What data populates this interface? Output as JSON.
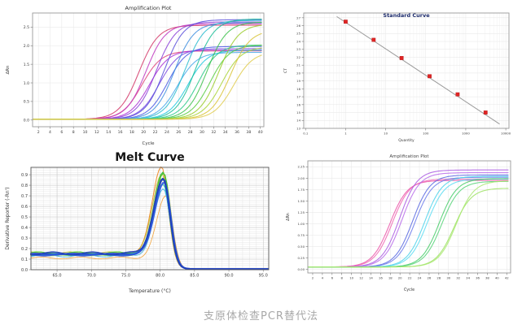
{
  "caption": "支原体检查PCR替代法",
  "chart_data": [
    {
      "id": "amp-main",
      "type": "amplification",
      "title": "Amplification Plot",
      "xlabel": "Cycle",
      "ylabel": "ΔRn",
      "xlim": [
        1,
        40.6
      ],
      "ylim": [
        -0.18,
        2.88
      ],
      "xticks": [
        2,
        4,
        6,
        8,
        10,
        12,
        14,
        16,
        18,
        20,
        22,
        24,
        26,
        28,
        30,
        32,
        34,
        36,
        38,
        40
      ],
      "xtick_labels": [
        "2",
        "4",
        "6",
        "8",
        "10",
        "12",
        "14",
        "16",
        "18",
        "20",
        "22",
        "24",
        "26",
        "28",
        "30",
        "32",
        "34",
        "36",
        "38",
        "40"
      ],
      "yticks": [
        0.0,
        0.5,
        1.0,
        1.5,
        2.0,
        2.5
      ],
      "ytick_labels": [
        "0.0",
        "0.5",
        "1.0",
        "1.5",
        "2.0",
        "2.5"
      ],
      "grid_on": true,
      "legend": "none",
      "sigmoid_k": 0.6,
      "baseline": 0.02,
      "series": [
        {
          "name": "red-hi",
          "color": "#d33a6a",
          "midpoint": 19.2,
          "plateau": 2.53
        },
        {
          "name": "red-lo",
          "color": "#e0447e",
          "midpoint": 19.7,
          "plateau": 1.84
        },
        {
          "name": "magenta-hi",
          "color": "#c038c0",
          "midpoint": 20.4,
          "plateau": 2.57
        },
        {
          "name": "magenta-lo",
          "color": "#ad35d6",
          "midpoint": 21.0,
          "plateau": 1.86
        },
        {
          "name": "purple-hi",
          "color": "#8a40d8",
          "midpoint": 22.2,
          "plateau": 2.62
        },
        {
          "name": "purple-lo",
          "color": "#7a4ae2",
          "midpoint": 22.7,
          "plateau": 1.9
        },
        {
          "name": "blueviolet-hi",
          "color": "#5a50da",
          "midpoint": 23.6,
          "plateau": 2.68
        },
        {
          "name": "blueviolet-lo",
          "color": "#4a5ae4",
          "midpoint": 24.1,
          "plateau": 1.96
        },
        {
          "name": "sky-hi",
          "color": "#3f8fdf",
          "midpoint": 25.3,
          "plateau": 2.6
        },
        {
          "name": "sky-lo",
          "color": "#49a9ea",
          "midpoint": 25.8,
          "plateau": 1.8
        },
        {
          "name": "cyan-hi",
          "color": "#2abccf",
          "midpoint": 27.1,
          "plateau": 2.66
        },
        {
          "name": "cyan-lo",
          "color": "#22c9df",
          "midpoint": 27.6,
          "plateau": 1.86
        },
        {
          "name": "teal-hi",
          "color": "#17bd97",
          "midpoint": 28.9,
          "plateau": 2.7
        },
        {
          "name": "teal-lo",
          "color": "#2cc989",
          "midpoint": 29.4,
          "plateau": 2.0
        },
        {
          "name": "green-hi",
          "color": "#3dc24c",
          "midpoint": 30.9,
          "plateau": 2.62
        },
        {
          "name": "green-lo",
          "color": "#57cc40",
          "midpoint": 31.4,
          "plateau": 2.0
        },
        {
          "name": "yellowgreen-hi",
          "color": "#9bcc2d",
          "midpoint": 32.9,
          "plateau": 2.56
        },
        {
          "name": "yellowgreen-lo",
          "color": "#aad437",
          "midpoint": 33.4,
          "plateau": 1.95
        },
        {
          "name": "gold-hi",
          "color": "#d9c438",
          "midpoint": 34.9,
          "plateau": 2.4
        },
        {
          "name": "gold-lo",
          "color": "#e0cc50",
          "midpoint": 35.4,
          "plateau": 1.82
        }
      ]
    },
    {
      "id": "std-curve",
      "type": "scatter",
      "title": "Standard Curve",
      "xlabel": "Quantity",
      "ylabel": "CT",
      "xlog": true,
      "xlim": [
        0.09,
        12000
      ],
      "ylim": [
        13,
        27.6
      ],
      "xticks": [
        0.1,
        1,
        10,
        100,
        1000,
        10000
      ],
      "xtick_labels": [
        "0.1",
        "1",
        "10",
        "100",
        "1000",
        "10000"
      ],
      "yticks": [
        13,
        14,
        15,
        16,
        17,
        18,
        19,
        20,
        21,
        22,
        23,
        24,
        25,
        26,
        27
      ],
      "ytick_labels": [
        "13",
        "14",
        "15",
        "16",
        "17",
        "18",
        "19",
        "20",
        "21",
        "22",
        "23",
        "24",
        "25",
        "26",
        "27"
      ],
      "grid_on": true,
      "point_color": "#e02424",
      "points": {
        "x": [
          1,
          5,
          25,
          125,
          625,
          3125
        ],
        "y": [
          26.5,
          24.2,
          21.9,
          19.6,
          17.3,
          15.0
        ]
      },
      "trendline": {
        "x1": 0.6,
        "y1": 27.15,
        "x2": 7000,
        "y2": 13.55,
        "color": "#9a9a9a"
      }
    },
    {
      "id": "melt-curve",
      "type": "melt",
      "title": "Melt Curve",
      "xlabel": "Temperature (°C)",
      "ylabel": "Derivative Reporter (-Rn')",
      "xlim": [
        61.2,
        95.8
      ],
      "ylim": [
        0,
        0.97
      ],
      "xticks": [
        65,
        70,
        75,
        80,
        85,
        90,
        95
      ],
      "xtick_labels": [
        "65.0",
        "70.0",
        "75.0",
        "80.0",
        "85.0",
        "90.0",
        "95.0"
      ],
      "yticks": [
        0.0,
        0.1,
        0.2,
        0.3,
        0.4,
        0.5,
        0.6,
        0.7,
        0.8,
        0.9
      ],
      "ytick_labels": [
        "0.0",
        "0.1",
        "0.2",
        "0.3",
        "0.4",
        "0.5",
        "0.6",
        "0.7",
        "0.8",
        "0.9"
      ],
      "grid_on": true,
      "minor_grid": {
        "x_step": 1,
        "y_step": 0.02
      },
      "series": [
        {
          "name": "orange",
          "color": "#ef8318",
          "tm": 80.2,
          "peak": 0.95,
          "baseline": 0.145,
          "lw": 1.0
        },
        {
          "name": "orange-thin",
          "color": "#f09a28",
          "tm": 80.9,
          "peak": 0.72,
          "baseline": 0.105,
          "lw": 0.8
        },
        {
          "name": "olive",
          "color": "#b8b82a",
          "tm": 80.3,
          "peak": 0.885,
          "baseline": 0.15,
          "lw": 0.9
        },
        {
          "name": "yellow",
          "color": "#d6ca32",
          "tm": 80.65,
          "peak": 0.87,
          "baseline": 0.135,
          "lw": 1.0
        },
        {
          "name": "green",
          "color": "#2eb93a",
          "tm": 80.45,
          "peak": 0.9,
          "baseline": 0.14,
          "lw": 1.3
        },
        {
          "name": "green-2",
          "color": "#4cc42e",
          "tm": 80.55,
          "peak": 0.885,
          "baseline": 0.15,
          "lw": 1.3
        },
        {
          "name": "lime",
          "color": "#8ed034",
          "tm": 80.35,
          "peak": 0.862,
          "baseline": 0.13,
          "lw": 1.1
        },
        {
          "name": "teal",
          "color": "#25c8b2",
          "tm": 80.42,
          "peak": 0.8,
          "baseline": 0.138,
          "lw": 1.2
        },
        {
          "name": "sky-blue",
          "color": "#3fb0da",
          "tm": 80.5,
          "peak": 0.75,
          "baseline": 0.128,
          "lw": 1.0
        },
        {
          "name": "blue-thick",
          "color": "#2546cc",
          "tm": 80.5,
          "peak": 0.845,
          "baseline": 0.142,
          "lw": 2.2
        },
        {
          "name": "blue-2",
          "color": "#2c55e2",
          "tm": 80.6,
          "peak": 0.825,
          "baseline": 0.136,
          "lw": 2.0
        },
        {
          "name": "navy",
          "color": "#1f3fb8",
          "tm": 80.42,
          "peak": 0.835,
          "baseline": 0.148,
          "lw": 1.8
        }
      ]
    },
    {
      "id": "amp-small",
      "type": "amplification",
      "title": "Amplification Plot",
      "xlabel": "Cycle",
      "ylabel": "ΔRn",
      "xlim": [
        1,
        42.8
      ],
      "ylim": [
        -0.08,
        2.38
      ],
      "xticks": [
        2,
        4,
        6,
        8,
        10,
        12,
        14,
        16,
        18,
        20,
        22,
        24,
        26,
        28,
        30,
        32,
        34,
        36,
        38,
        40,
        42
      ],
      "xtick_labels": [
        "2",
        "4",
        "6",
        "8",
        "10",
        "12",
        "14",
        "16",
        "18",
        "20",
        "22",
        "24",
        "26",
        "28",
        "30",
        "32",
        "34",
        "36",
        "38",
        "40",
        "42"
      ],
      "yticks": [
        0.0,
        0.25,
        0.5,
        0.75,
        1.0,
        1.25,
        1.5,
        1.75,
        2.0,
        2.25
      ],
      "ytick_labels": [
        "0.00",
        "0.25",
        "0.50",
        "0.75",
        "1.00",
        "1.25",
        "1.50",
        "1.75",
        "2.00",
        "2.25"
      ],
      "grid_on": true,
      "sigmoid_k": 0.55,
      "baseline": 0.05,
      "series": [
        {
          "name": "pink-1",
          "color": "#ea55a8",
          "midpoint": 17.9,
          "plateau": 1.9
        },
        {
          "name": "pink-2",
          "color": "#f065b2",
          "midpoint": 18.4,
          "plateau": 1.93
        },
        {
          "name": "violet-1",
          "color": "#aa5ce2",
          "midpoint": 19.9,
          "plateau": 2.13
        },
        {
          "name": "violet-2",
          "color": "#b96cea",
          "midpoint": 20.4,
          "plateau": 2.07
        },
        {
          "name": "blue-1",
          "color": "#5b6ae2",
          "midpoint": 22.6,
          "plateau": 2.02
        },
        {
          "name": "blue-2",
          "color": "#6b7aea",
          "midpoint": 23.1,
          "plateau": 1.97
        },
        {
          "name": "cyan-1",
          "color": "#4cd2ea",
          "midpoint": 25.1,
          "plateau": 1.99
        },
        {
          "name": "cyan-2",
          "color": "#5cdcf2",
          "midpoint": 25.6,
          "plateau": 1.93
        },
        {
          "name": "green-1",
          "color": "#46cc68",
          "midpoint": 28.1,
          "plateau": 1.94
        },
        {
          "name": "green-2",
          "color": "#56d478",
          "midpoint": 28.6,
          "plateau": 1.88
        },
        {
          "name": "lightgreen-1",
          "color": "#9ce262",
          "midpoint": 31.1,
          "plateau": 1.73
        },
        {
          "name": "lightgreen-2",
          "color": "#aae972",
          "midpoint": 31.6,
          "plateau": 1.89
        }
      ]
    }
  ]
}
